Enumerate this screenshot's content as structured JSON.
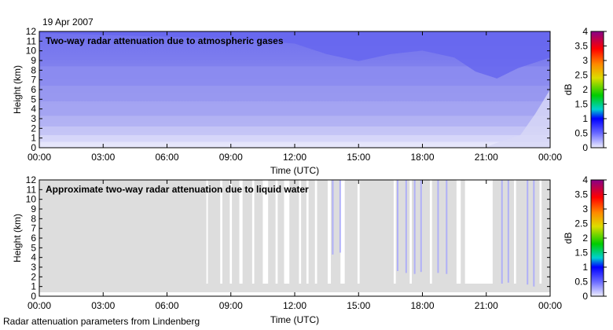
{
  "date_label": "19 Apr 2007",
  "footer": "Radar attenuation parameters from Lindenberg",
  "chart_data": [
    {
      "type": "heatmap",
      "title": "Two-way radar attenuation due to atmospheric gases",
      "xlabel": "Time (UTC)",
      "ylabel": "Height (km)",
      "x_ticks": [
        "00:00",
        "03:00",
        "06:00",
        "09:00",
        "12:00",
        "15:00",
        "18:00",
        "21:00",
        "00:00"
      ],
      "x_range_hours": [
        0,
        24
      ],
      "y_ticks": [
        "0",
        "1",
        "2",
        "3",
        "4",
        "5",
        "6",
        "7",
        "8",
        "9",
        "10",
        "11",
        "12"
      ],
      "y_range_km": [
        0,
        12
      ],
      "colorbar": {
        "label": "dB",
        "range": [
          0,
          4
        ],
        "ticks": [
          "0",
          "0.5",
          "1",
          "1.5",
          "2",
          "2.5",
          "3",
          "3.5",
          "4"
        ],
        "colors": [
          "#eeeeff",
          "#0000ff",
          "#00d0d0",
          "#00cc00",
          "#dddd00",
          "#ff8800",
          "#ff0000",
          "#aa0044",
          "#880088"
        ]
      },
      "attenuation_db_at_12km": [
        {
          "t": 0,
          "db": 0.46
        },
        {
          "t": 3,
          "db": 0.47
        },
        {
          "t": 6,
          "db": 0.48
        },
        {
          "t": 9,
          "db": 0.49
        },
        {
          "t": 12,
          "db": 0.52
        },
        {
          "t": 13.5,
          "db": 0.58
        },
        {
          "t": 15,
          "db": 0.62
        },
        {
          "t": 16.5,
          "db": 0.58
        },
        {
          "t": 18,
          "db": 0.56
        },
        {
          "t": 19.5,
          "db": 0.6
        },
        {
          "t": 20.5,
          "db": 0.68
        },
        {
          "t": 21.5,
          "db": 0.72
        },
        {
          "t": 22.5,
          "db": 0.66
        },
        {
          "t": 24,
          "db": 0.6
        }
      ]
    },
    {
      "type": "heatmap",
      "title": "Approximate two-way radar attenuation due to liquid water",
      "xlabel": "Time (UTC)",
      "ylabel": "Height (km)",
      "x_ticks": [
        "00:00",
        "03:00",
        "06:00",
        "09:00",
        "12:00",
        "15:00",
        "18:00",
        "21:00",
        "00:00"
      ],
      "x_range_hours": [
        0,
        24
      ],
      "y_ticks": [
        "0",
        "1",
        "2",
        "3",
        "4",
        "5",
        "6",
        "7",
        "8",
        "9",
        "10",
        "11",
        "12"
      ],
      "y_range_km": [
        0,
        12
      ],
      "colorbar": {
        "label": "dB",
        "range": [
          0,
          4
        ],
        "ticks": [
          "0",
          "0.5",
          "1",
          "1.5",
          "2",
          "2.5",
          "3",
          "3.5",
          "4"
        ],
        "colors": [
          "#eeeeff",
          "#0000ff",
          "#00d0d0",
          "#00cc00",
          "#dddd00",
          "#ff8800",
          "#ff0000",
          "#aa0044",
          "#880088"
        ]
      },
      "background_color": "#dddddd",
      "no_data_color": "#ffffff",
      "no_data_gaps_hours": [
        [
          7.85,
          7.92
        ],
        [
          8.5,
          8.6
        ],
        [
          8.95,
          9.05
        ],
        [
          9.4,
          9.55
        ],
        [
          10.0,
          10.1
        ],
        [
          10.5,
          10.75
        ],
        [
          11.1,
          11.2
        ],
        [
          11.5,
          11.75
        ],
        [
          12.2,
          12.3
        ],
        [
          12.55,
          12.65
        ],
        [
          12.95,
          13.05
        ],
        [
          13.55,
          13.7
        ],
        [
          14.15,
          14.35
        ],
        [
          14.95,
          15.05
        ],
        [
          16.65,
          16.75
        ],
        [
          17.4,
          17.5
        ],
        [
          18.35,
          18.45
        ],
        [
          19.6,
          19.8
        ],
        [
          20.0,
          21.3
        ],
        [
          22.3,
          22.4
        ],
        [
          23.5,
          23.6
        ]
      ],
      "cloud_tops_km": [
        {
          "t": 13.75,
          "top": 12,
          "bottom": 4.3
        },
        {
          "t": 14.1,
          "top": 12,
          "bottom": 4.5
        },
        {
          "t": 16.8,
          "top": 12,
          "bottom": 2.6
        },
        {
          "t": 17.2,
          "top": 12,
          "bottom": 2.4
        },
        {
          "t": 17.6,
          "top": 12,
          "bottom": 2.3
        },
        {
          "t": 17.9,
          "top": 12,
          "bottom": 2.5
        },
        {
          "t": 18.7,
          "top": 12,
          "bottom": 2.4
        },
        {
          "t": 19.1,
          "top": 12,
          "bottom": 2.3
        },
        {
          "t": 21.7,
          "top": 12,
          "bottom": 1.3
        },
        {
          "t": 22.0,
          "top": 12,
          "bottom": 1.4
        },
        {
          "t": 22.9,
          "top": 12,
          "bottom": 1.2
        },
        {
          "t": 23.2,
          "top": 12,
          "bottom": 1.0
        }
      ]
    }
  ]
}
